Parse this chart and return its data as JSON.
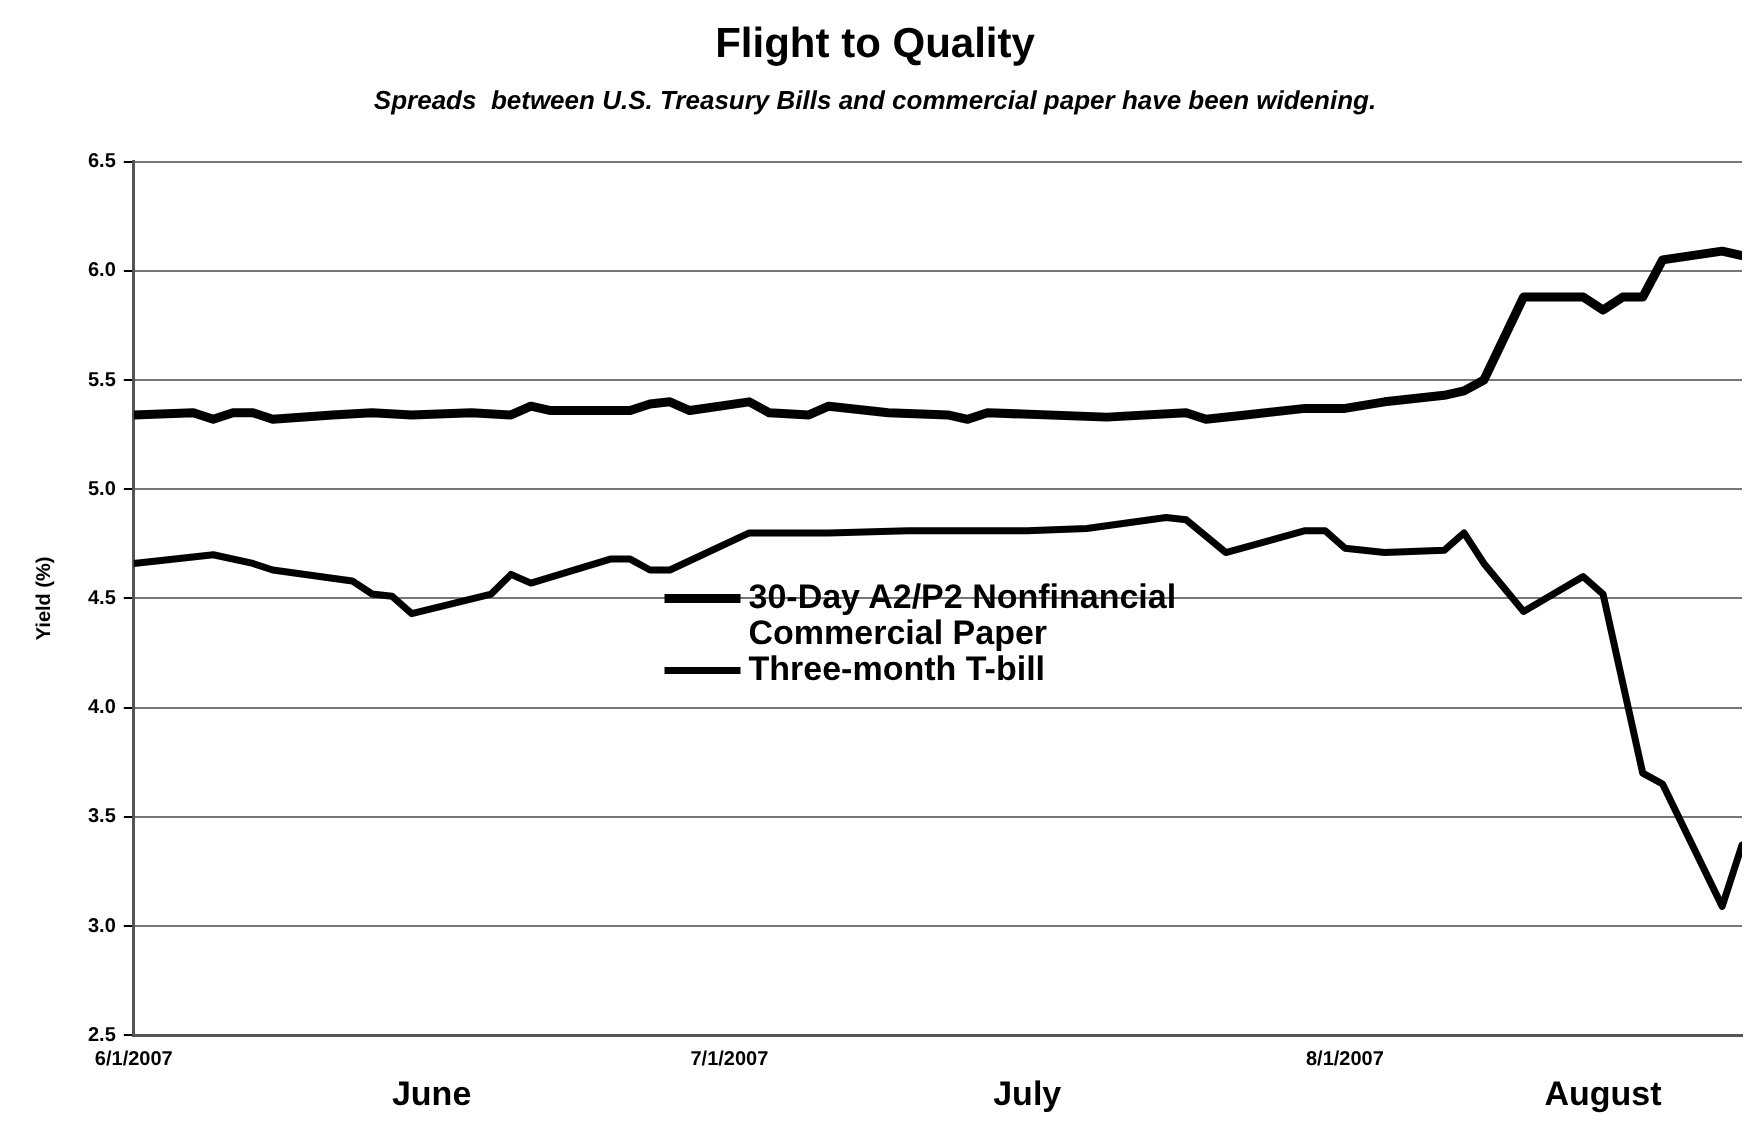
{
  "chart_data": {
    "type": "line",
    "title": "Flight to Quality",
    "subtitle": "Spreads  between U.S. Treasury Bills and commercial paper have been widening.",
    "ylabel": "Yield (%)",
    "xlim": [
      "2007-06-01",
      "2007-08-21"
    ],
    "xticks": [
      {
        "value": "2007-06-01",
        "label": "6/1/2007"
      },
      {
        "value": "2007-07-01",
        "label": "7/1/2007"
      },
      {
        "value": "2007-08-01",
        "label": "8/1/2007"
      }
    ],
    "x2lim": [
      "2007-06-01",
      "2007-08-21"
    ],
    "x2ticks": [
      {
        "value": "2007-06-16",
        "label": "June"
      },
      {
        "value": "2007-07-16",
        "label": "July"
      },
      {
        "value": "2007-08-14",
        "label": "August"
      }
    ],
    "ylim": [
      2.5,
      6.5
    ],
    "yticks": [
      {
        "value": 2.5,
        "label": "2.5"
      },
      {
        "value": 3,
        "label": "3.0"
      },
      {
        "value": 3.5,
        "label": "3.5"
      },
      {
        "value": 4,
        "label": "4.0"
      },
      {
        "value": 4.5,
        "label": "4.5"
      },
      {
        "value": 5,
        "label": "5.0"
      },
      {
        "value": 5.5,
        "label": "5.5"
      },
      {
        "value": 6,
        "label": "6.0"
      },
      {
        "value": 6.5,
        "label": "6.5"
      }
    ],
    "grid": "y",
    "legend": "center",
    "marker": "none",
    "line_style": "solid",
    "series": [
      {
        "name": "30-Day A2/P2 Nonfinancial Commercial Paper",
        "color": "#000000",
        "x": [
          "2007-06-01",
          "2007-06-04",
          "2007-06-05",
          "2007-06-06",
          "2007-06-07",
          "2007-06-08",
          "2007-06-11",
          "2007-06-13",
          "2007-06-15",
          "2007-06-18",
          "2007-06-20",
          "2007-06-21",
          "2007-06-22",
          "2007-06-26",
          "2007-06-27",
          "2007-06-28",
          "2007-06-29",
          "2007-07-02",
          "2007-07-03",
          "2007-07-05",
          "2007-07-06",
          "2007-07-09",
          "2007-07-12",
          "2007-07-13",
          "2007-07-14",
          "2007-07-20",
          "2007-07-24",
          "2007-07-25",
          "2007-07-27",
          "2007-07-30",
          "2007-08-01",
          "2007-08-03",
          "2007-08-06",
          "2007-08-07",
          "2007-08-08",
          "2007-08-10",
          "2007-08-13",
          "2007-08-14",
          "2007-08-15",
          "2007-08-16",
          "2007-08-17",
          "2007-08-20",
          "2007-08-21"
        ],
        "values": [
          5.34,
          5.35,
          5.32,
          5.35,
          5.35,
          5.32,
          5.34,
          5.35,
          5.34,
          5.35,
          5.34,
          5.38,
          5.36,
          5.36,
          5.39,
          5.4,
          5.36,
          5.4,
          5.35,
          5.34,
          5.38,
          5.35,
          5.34,
          5.32,
          5.35,
          5.33,
          5.35,
          5.32,
          5.34,
          5.37,
          5.37,
          5.4,
          5.43,
          5.45,
          5.5,
          5.88,
          5.88,
          5.82,
          5.88,
          5.88,
          6.05,
          6.09,
          6.07
        ]
      },
      {
        "name": "Three-month T-bill",
        "color": "#000000",
        "x": [
          "2007-06-01",
          "2007-06-05",
          "2007-06-07",
          "2007-06-08",
          "2007-06-12",
          "2007-06-13",
          "2007-06-14",
          "2007-06-15",
          "2007-06-19",
          "2007-06-20",
          "2007-06-21",
          "2007-06-25",
          "2007-06-26",
          "2007-06-27",
          "2007-06-28",
          "2007-07-02",
          "2007-07-06",
          "2007-07-10",
          "2007-07-16",
          "2007-07-19",
          "2007-07-23",
          "2007-07-24",
          "2007-07-26",
          "2007-07-30",
          "2007-07-31",
          "2007-08-01",
          "2007-08-03",
          "2007-08-06",
          "2007-08-07",
          "2007-08-08",
          "2007-08-10",
          "2007-08-13",
          "2007-08-14",
          "2007-08-16",
          "2007-08-17",
          "2007-08-20",
          "2007-08-21"
        ],
        "values": [
          4.66,
          4.7,
          4.66,
          4.63,
          4.58,
          4.52,
          4.51,
          4.43,
          4.52,
          4.61,
          4.57,
          4.68,
          4.68,
          4.63,
          4.63,
          4.8,
          4.8,
          4.81,
          4.81,
          4.82,
          4.87,
          4.86,
          4.71,
          4.81,
          4.81,
          4.73,
          4.71,
          4.72,
          4.8,
          4.66,
          4.44,
          4.6,
          4.52,
          3.7,
          3.65,
          3.09,
          3.37
        ]
      }
    ]
  }
}
